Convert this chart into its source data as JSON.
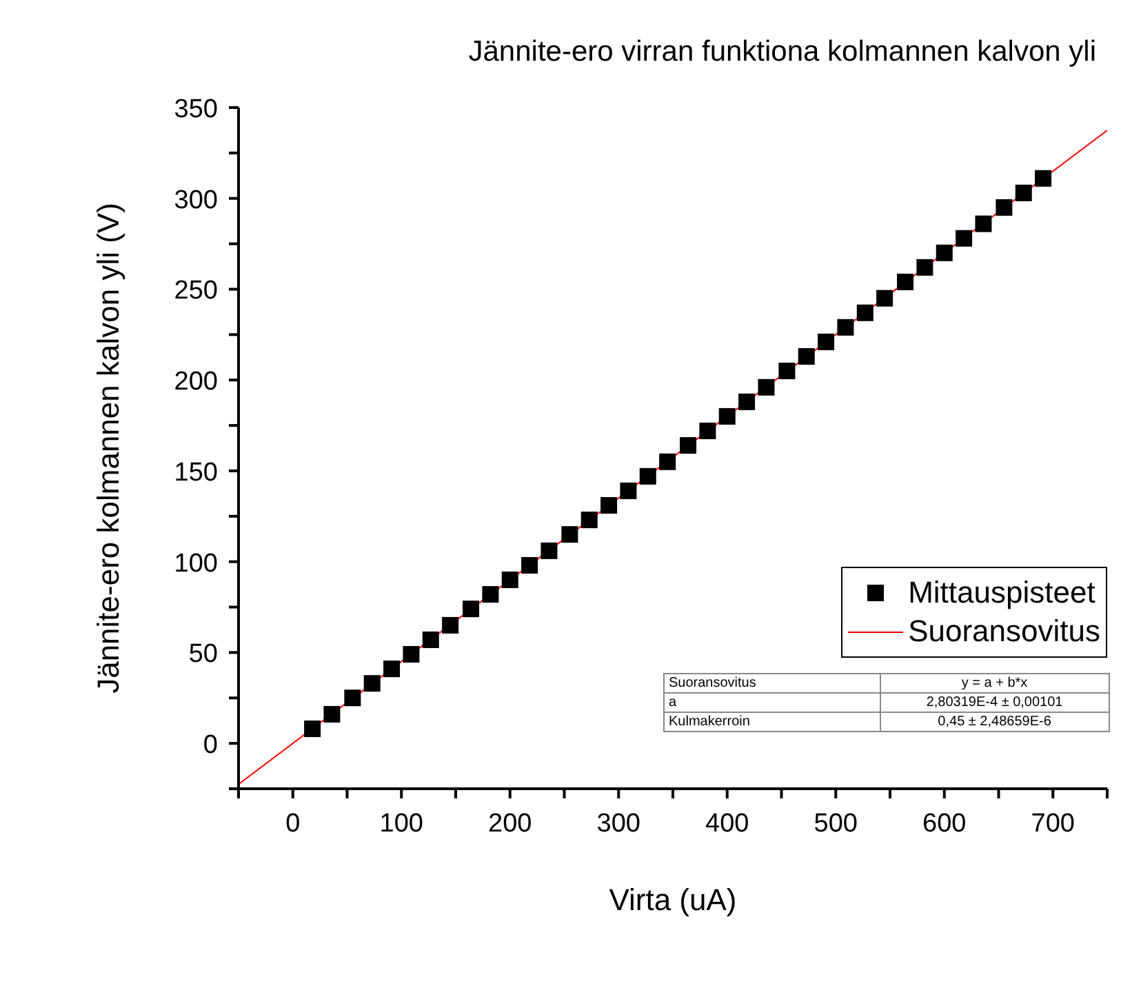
{
  "chart_data": {
    "type": "scatter",
    "title": "Jännite-ero virran funktiona kolmannen kalvon yli",
    "xlabel": "Virta (uA)",
    "ylabel": "Jännite-ero kolmannen kalvon yli (V)",
    "x": [
      18,
      36,
      55,
      73,
      91,
      109,
      127,
      145,
      164,
      182,
      200,
      218,
      236,
      255,
      273,
      291,
      309,
      327,
      345,
      364,
      382,
      400,
      418,
      436,
      455,
      473,
      491,
      509,
      527,
      545,
      564,
      582,
      600,
      618,
      636,
      655,
      673,
      691
    ],
    "series": [
      {
        "name": "Mittauspisteet",
        "color": "#000000",
        "marker": "square",
        "values": [
          8,
          16,
          25,
          33,
          41,
          49,
          57,
          65,
          74,
          82,
          90,
          98,
          106,
          115,
          123,
          131,
          139,
          147,
          155,
          164,
          172,
          180,
          188,
          196,
          205,
          213,
          221,
          229,
          237,
          245,
          254,
          262,
          270,
          278,
          286,
          295,
          303,
          311
        ]
      },
      {
        "name": "Suoransovitus",
        "type": "line",
        "color": "#ff0000",
        "marker": "none",
        "x": [
          -50,
          750
        ],
        "values": [
          -22.5,
          337.5
        ]
      }
    ],
    "xlim": [
      -50,
      750
    ],
    "ylim": [
      -25,
      350
    ],
    "xticks": [
      {
        "value": -50,
        "label": null
      },
      0,
      {
        "value": 50,
        "label": null
      },
      100,
      {
        "value": 150,
        "label": null
      },
      200,
      {
        "value": 250,
        "label": null
      },
      300,
      {
        "value": 350,
        "label": null
      },
      400,
      {
        "value": 450,
        "label": null
      },
      500,
      {
        "value": 550,
        "label": null
      },
      600,
      {
        "value": 650,
        "label": null
      },
      700,
      {
        "value": 750,
        "label": null
      }
    ],
    "yticks": [
      {
        "value": -25,
        "label": null
      },
      0,
      {
        "value": 25,
        "label": null
      },
      50,
      {
        "value": 75,
        "label": null
      },
      100,
      {
        "value": 125,
        "label": null
      },
      150,
      {
        "value": 175,
        "label": null
      },
      200,
      {
        "value": 225,
        "label": null
      },
      250,
      {
        "value": 275,
        "label": null
      },
      300,
      {
        "value": 325,
        "label": null
      },
      350
    ],
    "grid": false,
    "legend": "right",
    "annotations": [
      "Suoransovitus",
      "y = a + b*x",
      "a",
      "2,80319E-4 ± 0,00101",
      "Kulmakerroin",
      "0,45 ± 2,48659E-6"
    ]
  }
}
